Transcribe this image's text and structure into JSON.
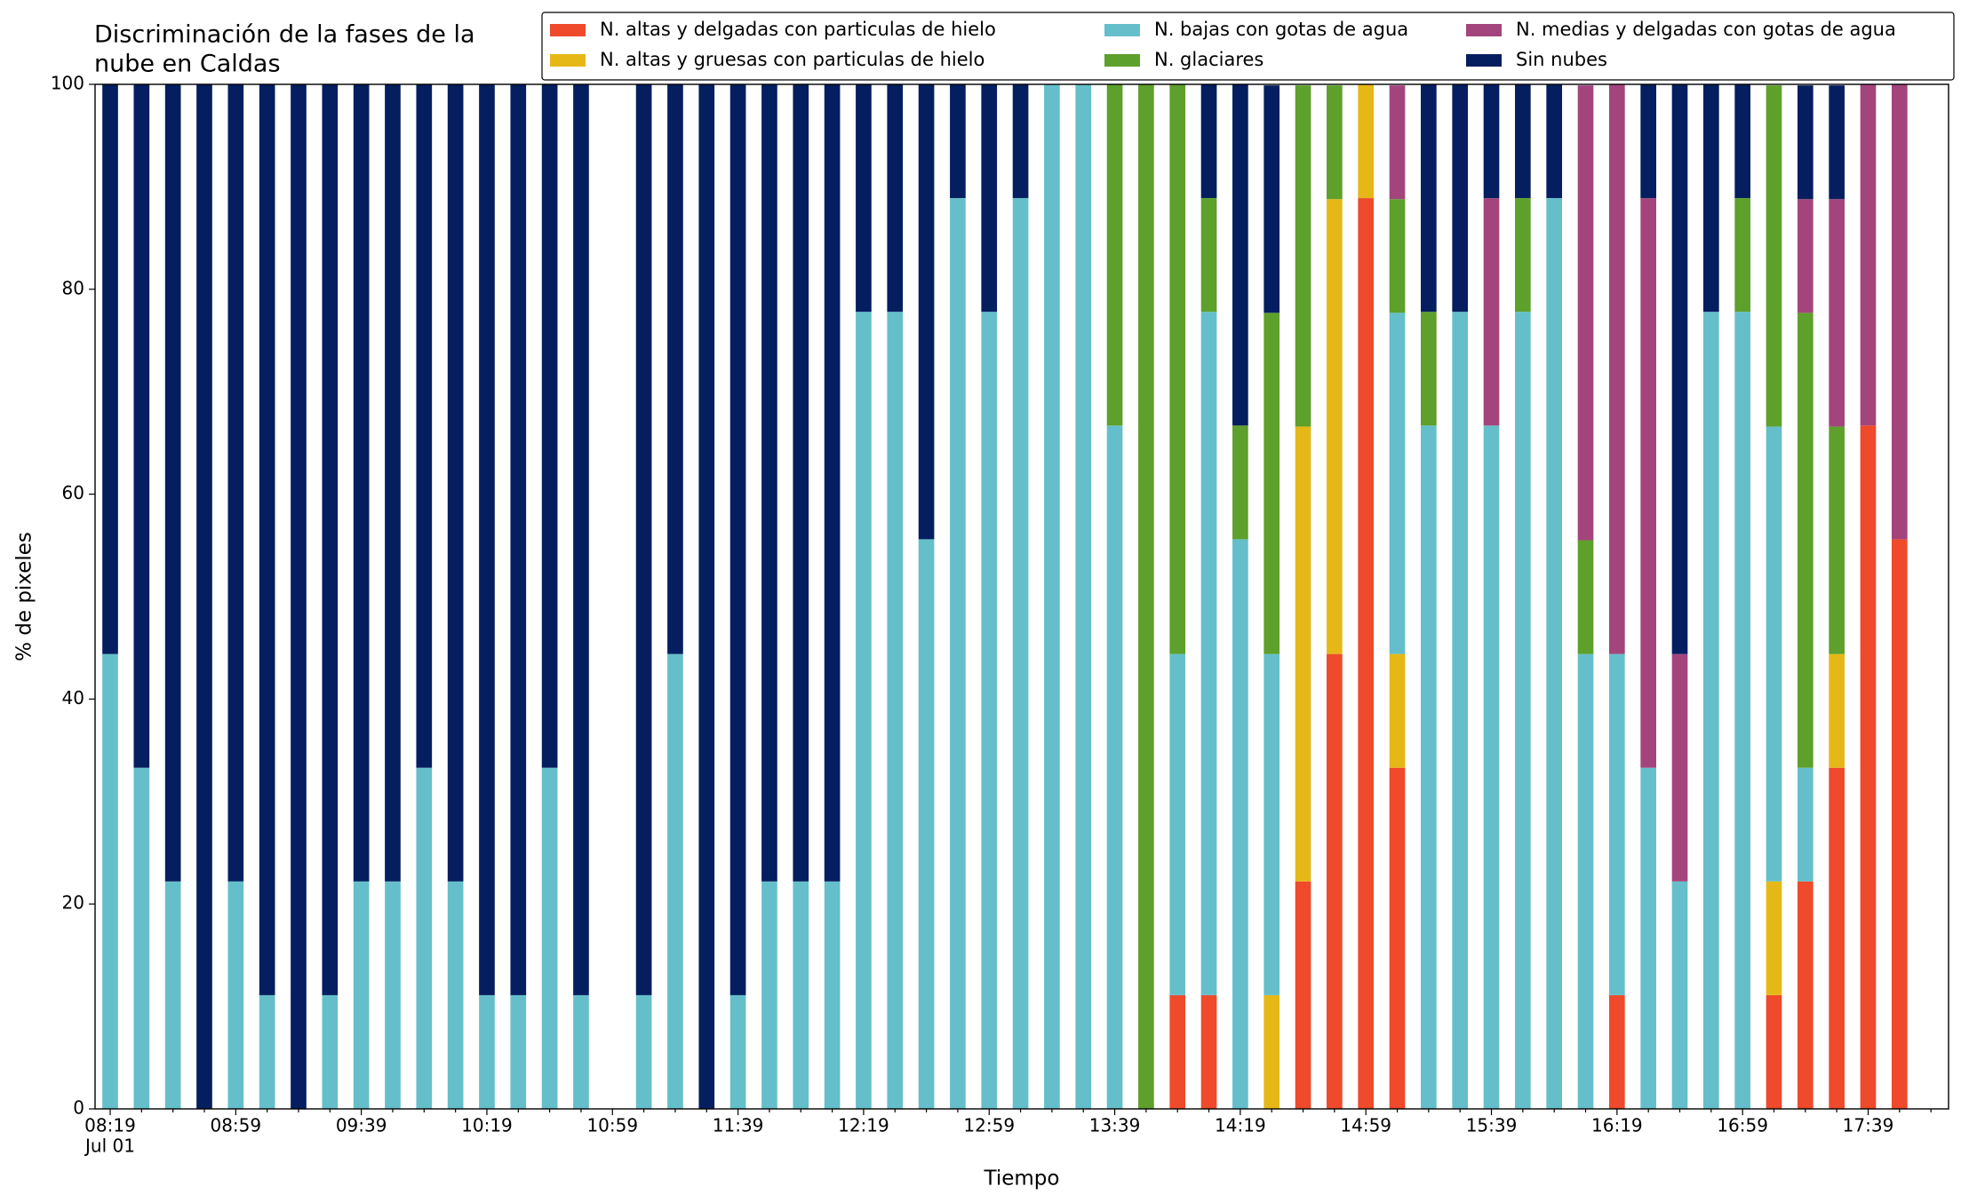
{
  "chart_data": {
    "type": "stacked_bar",
    "title": [
      "Discriminación de la fases de la",
      "nube en Caldas"
    ],
    "x_label": "Tiempo",
    "y_label": "% de pixeles",
    "date_label": "Jul 01",
    "categories": [
      "08:19",
      null,
      null,
      null,
      "08:59",
      null,
      null,
      null,
      "09:39",
      null,
      null,
      null,
      "10:19",
      null,
      null,
      null,
      "10:59",
      null,
      null,
      null,
      "11:39",
      null,
      null,
      null,
      "12:19",
      null,
      null,
      null,
      "12:59",
      null,
      null,
      null,
      "13:39",
      null,
      null,
      null,
      "14:19",
      null,
      null,
      null,
      "14:59",
      null,
      null,
      null,
      "15:39",
      null,
      null,
      null,
      "16:19",
      null,
      null,
      null,
      "16:59",
      null,
      null,
      null,
      "17:39",
      null
    ],
    "ylim": [
      0,
      100
    ],
    "yticks": [
      0,
      20,
      40,
      60,
      80,
      100
    ],
    "legend": "upper right",
    "series": [
      {
        "name": "N. altas y delgadas con particulas de hielo",
        "color": "#ee4a2b",
        "values": [
          0,
          0,
          0,
          0,
          0,
          0,
          0,
          0,
          0,
          0,
          0,
          0,
          0,
          0,
          0,
          0,
          0,
          0,
          0,
          0,
          0,
          0,
          0,
          0,
          0,
          0,
          0,
          0,
          0,
          0,
          0,
          0,
          0,
          0,
          11.1,
          11.1,
          0,
          0,
          22.2,
          44.4,
          88.9,
          33.3,
          0,
          0,
          0,
          0,
          0,
          0,
          11.1,
          0,
          0,
          0,
          0,
          11.1,
          22.2,
          33.3,
          66.7,
          55.6
        ]
      },
      {
        "name": "N. altas y gruesas con particulas de hielo",
        "color": "#e6b817",
        "values": [
          0,
          0,
          0,
          0,
          0,
          0,
          0,
          0,
          0,
          0,
          0,
          0,
          0,
          0,
          0,
          0,
          0,
          0,
          0,
          0,
          0,
          0,
          0,
          0,
          0,
          0,
          0,
          0,
          0,
          0,
          0,
          0,
          0,
          0,
          0,
          0,
          0,
          11.1,
          44.4,
          44.4,
          11.1,
          11.1,
          0,
          0,
          0,
          0,
          0,
          0,
          0,
          0,
          0,
          0,
          0,
          11.1,
          0,
          11.1,
          0,
          0
        ]
      },
      {
        "name": "N. bajas con gotas de agua",
        "color": "#65bfca",
        "values": [
          44.4,
          33.3,
          22.2,
          0,
          22.2,
          11.1,
          0,
          11.1,
          22.2,
          22.2,
          33.3,
          22.2,
          11.1,
          11.1,
          33.3,
          11.1,
          0,
          11.1,
          44.4,
          0,
          11.1,
          22.2,
          22.2,
          22.2,
          77.8,
          77.8,
          55.6,
          88.9,
          77.8,
          88.9,
          100,
          100,
          66.7,
          0,
          33.3,
          66.7,
          55.6,
          33.3,
          0,
          0,
          0,
          33.3,
          66.7,
          77.8,
          66.7,
          77.8,
          88.9,
          44.4,
          33.3,
          33.3,
          22.2,
          77.8,
          77.8,
          44.4,
          11.1,
          0,
          0,
          0
        ]
      },
      {
        "name": "N. glaciares",
        "color": "#5da02b",
        "values": [
          0,
          0,
          0,
          0,
          0,
          0,
          0,
          0,
          0,
          0,
          0,
          0,
          0,
          0,
          0,
          0,
          0,
          0,
          0,
          0,
          0,
          0,
          0,
          0,
          0,
          0,
          0,
          0,
          0,
          0,
          0,
          0,
          33.3,
          100,
          55.6,
          11.1,
          11.1,
          33.3,
          33.3,
          11.1,
          0,
          11.1,
          11.1,
          0,
          0,
          11.1,
          0,
          11.1,
          0,
          0,
          0,
          0,
          11.1,
          33.3,
          44.4,
          22.2,
          0,
          0
        ]
      },
      {
        "name": "N. medias y delgadas con gotas de agua",
        "color": "#a3457c",
        "values": [
          0,
          0,
          0,
          0,
          0,
          0,
          0,
          0,
          0,
          0,
          0,
          0,
          0,
          0,
          0,
          0,
          0,
          0,
          0,
          0,
          0,
          0,
          0,
          0,
          0,
          0,
          0,
          0,
          0,
          0,
          0,
          0,
          0,
          0,
          0,
          0,
          0,
          0,
          0,
          0,
          0,
          11.1,
          0,
          0,
          22.2,
          0,
          0,
          44.4,
          55.6,
          55.6,
          22.2,
          0,
          0,
          0,
          11.1,
          22.2,
          33.3,
          44.4
        ]
      },
      {
        "name": "Sin nubes",
        "color": "#041e5f",
        "values": [
          55.6,
          66.7,
          77.8,
          100,
          77.8,
          88.9,
          100,
          88.9,
          77.8,
          77.8,
          66.7,
          77.8,
          88.9,
          88.9,
          66.7,
          88.9,
          0,
          88.9,
          55.6,
          100,
          88.9,
          77.8,
          77.8,
          77.8,
          22.2,
          22.2,
          44.4,
          11.1,
          22.2,
          11.1,
          0,
          0,
          0,
          0,
          0,
          11.1,
          33.3,
          22.2,
          0,
          0,
          0,
          0,
          22.2,
          22.2,
          11.1,
          11.1,
          11.1,
          0,
          0,
          11.1,
          55.6,
          22.2,
          11.1,
          0,
          11.1,
          11.1,
          0,
          0
        ]
      }
    ]
  }
}
